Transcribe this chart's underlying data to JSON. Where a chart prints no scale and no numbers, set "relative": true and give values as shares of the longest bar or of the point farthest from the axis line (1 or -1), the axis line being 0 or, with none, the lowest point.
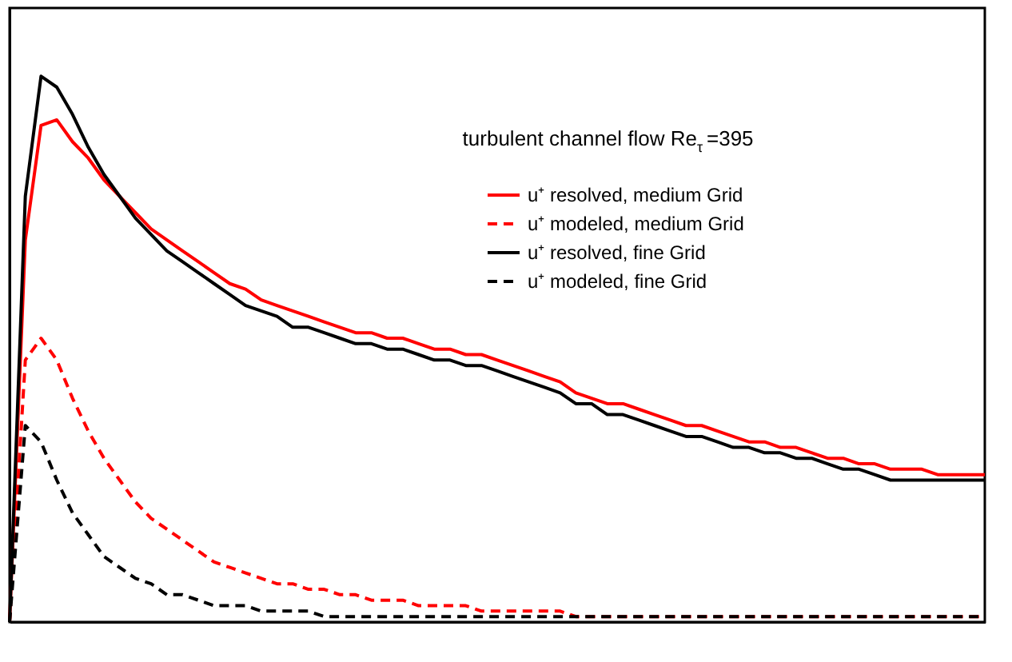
{
  "chart_data": {
    "type": "line",
    "relative": true,
    "legend_title": "turbulent channel flow Re$_{τ}$=395",
    "legend": "top right",
    "grid": false,
    "marker": "none",
    "categories": [
      null,
      null,
      null,
      null,
      null,
      null,
      null,
      null,
      null,
      null,
      null,
      null,
      null,
      null,
      null,
      null,
      null,
      null,
      null,
      null,
      null,
      null,
      null,
      null,
      null,
      null,
      null,
      null,
      null,
      null,
      null,
      null,
      null,
      null,
      null,
      null,
      null,
      null,
      null,
      null,
      null,
      null,
      null,
      null,
      null,
      null,
      null,
      null,
      null,
      null,
      null,
      null,
      null,
      null,
      null,
      null,
      null,
      null,
      null,
      null,
      null,
      null,
      null
    ],
    "series": [
      {
        "name": "u⁺ resolved, medium Grid",
        "color": "#ff0000",
        "line_style": "solid",
        "values": [
          0,
          0.7,
          0.91,
          0.92,
          0.88,
          0.85,
          0.81,
          0.78,
          0.75,
          0.72,
          0.7,
          0.68,
          0.66,
          0.64,
          0.62,
          0.61,
          0.59,
          0.58,
          0.57,
          0.56,
          0.55,
          0.54,
          0.53,
          0.53,
          0.52,
          0.52,
          0.51,
          0.5,
          0.5,
          0.49,
          0.49,
          0.48,
          0.47,
          0.46,
          0.45,
          0.44,
          0.42,
          0.41,
          0.4,
          0.4,
          0.39,
          0.38,
          0.37,
          0.36,
          0.36,
          0.35,
          0.34,
          0.33,
          0.33,
          0.32,
          0.32,
          0.31,
          0.3,
          0.3,
          0.29,
          0.29,
          0.28,
          0.28,
          0.28,
          0.27,
          0.27,
          0.27,
          0.27
        ]
      },
      {
        "name": "u⁺ modeled, medium Grid",
        "color": "#ff0000",
        "line_style": "dashed",
        "values": [
          0,
          0.48,
          0.52,
          0.48,
          0.41,
          0.35,
          0.3,
          0.26,
          0.22,
          0.19,
          0.17,
          0.15,
          0.13,
          0.11,
          0.1,
          0.09,
          0.08,
          0.07,
          0.07,
          0.06,
          0.06,
          0.05,
          0.05,
          0.04,
          0.04,
          0.04,
          0.03,
          0.03,
          0.03,
          0.03,
          0.02,
          0.02,
          0.02,
          0.02,
          0.02,
          0.02,
          0.01,
          0.01,
          0.01,
          0.01,
          0.01,
          0.01,
          0.01,
          0.01,
          0.01,
          0.01,
          0.01,
          0.01,
          0.01,
          0.01,
          0.01,
          0.01,
          0.01,
          0.01,
          0.01,
          0.01,
          0.01,
          0.01,
          0.01,
          0.01,
          0.01,
          0.01,
          0.01
        ]
      },
      {
        "name": "u⁺ resolved, fine Grid",
        "color": "#000000",
        "line_style": "solid",
        "values": [
          0,
          0.78,
          1.0,
          0.98,
          0.93,
          0.87,
          0.82,
          0.78,
          0.74,
          0.71,
          0.68,
          0.66,
          0.64,
          0.62,
          0.6,
          0.58,
          0.57,
          0.56,
          0.54,
          0.54,
          0.53,
          0.52,
          0.51,
          0.51,
          0.5,
          0.5,
          0.49,
          0.48,
          0.48,
          0.47,
          0.47,
          0.46,
          0.45,
          0.44,
          0.43,
          0.42,
          0.4,
          0.4,
          0.38,
          0.38,
          0.37,
          0.36,
          0.35,
          0.34,
          0.34,
          0.33,
          0.32,
          0.32,
          0.31,
          0.31,
          0.3,
          0.3,
          0.29,
          0.28,
          0.28,
          0.27,
          0.26,
          0.26,
          0.26,
          0.26,
          0.26,
          0.26,
          0.26
        ]
      },
      {
        "name": "u⁺ modeled, fine Grid",
        "color": "#000000",
        "line_style": "dashed",
        "values": [
          0,
          0.36,
          0.33,
          0.26,
          0.2,
          0.16,
          0.12,
          0.1,
          0.08,
          0.07,
          0.05,
          0.05,
          0.04,
          0.03,
          0.03,
          0.03,
          0.02,
          0.02,
          0.02,
          0.02,
          0.01,
          0.01,
          0.01,
          0.01,
          0.01,
          0.01,
          0.01,
          0.01,
          0.01,
          0.01,
          0.01,
          0.01,
          0.01,
          0.01,
          0.01,
          0.01,
          0.01,
          0.01,
          0.01,
          0.01,
          0.01,
          0.01,
          0.01,
          0.01,
          0.01,
          0.01,
          0.01,
          0.01,
          0.01,
          0.01,
          0.01,
          0.01,
          0.01,
          0.01,
          0.01,
          0.01,
          0.01,
          0.01,
          0.01,
          0.01,
          0.01,
          0.01,
          0.01
        ]
      }
    ]
  }
}
